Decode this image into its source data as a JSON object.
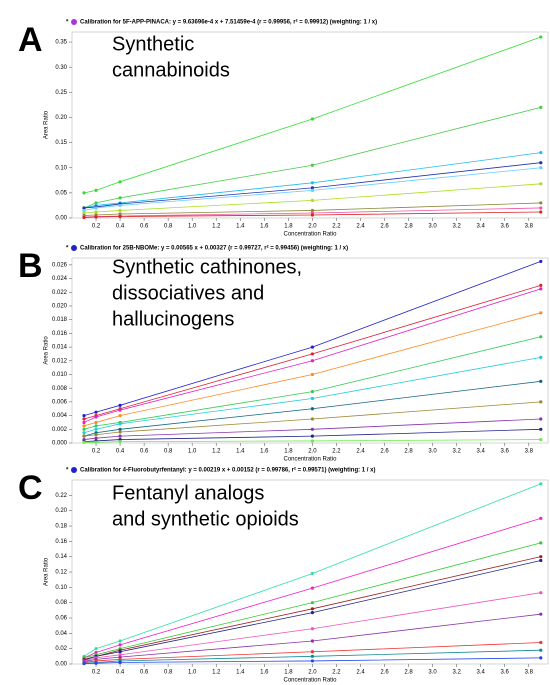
{
  "chart_data": [
    {
      "type": "line",
      "panel_label": "A",
      "heading": [
        "Synthetic",
        "cannabinoids"
      ],
      "caption": "Calibration for 5F-APP-PINACA: y = 9.63696e-4 x + 7.51459e-4 (r = 0.99956, r² = 0.99912) (weighting: 1 / x)",
      "xlabel": "Concentration Ratio",
      "ylabel": "Area Ratio",
      "x": [
        0.1,
        0.2,
        0.4,
        2,
        3.9
      ],
      "xlim": [
        0,
        3.96
      ],
      "ylim": [
        0,
        0.37
      ],
      "xticks": [
        0.2,
        0.4,
        0.6,
        0.8,
        {
          "value": 1,
          "label": "1.0"
        },
        1.2,
        1.4,
        1.6,
        1.8,
        {
          "value": 2,
          "label": "2.0"
        },
        2.2,
        2.4,
        2.6,
        2.8,
        {
          "value": 3,
          "label": "3.0"
        },
        3.2,
        3.4,
        3.6,
        3.8
      ],
      "yticks": [
        {
          "value": 0,
          "label": "0.00"
        },
        0.05,
        {
          "value": 0.1,
          "label": "0.10"
        },
        0.15,
        {
          "value": 0.2,
          "label": "0.20"
        },
        0.25,
        {
          "value": 0.3,
          "label": "0.30"
        },
        0.35
      ],
      "series": [
        {
          "color": "#33dd33",
          "values": [
            0.05,
            0.055,
            0.072,
            0.197,
            0.36
          ]
        },
        {
          "color": "#44cc44",
          "values": [
            0.02,
            0.03,
            0.04,
            0.105,
            0.22
          ]
        },
        {
          "color": "#22bbee",
          "values": [
            0.02,
            0.025,
            0.03,
            0.07,
            0.13
          ]
        },
        {
          "color": "#2233aa",
          "values": [
            0.02,
            0.022,
            0.028,
            0.06,
            0.11
          ]
        },
        {
          "color": "#66ccff",
          "values": [
            0.015,
            0.02,
            0.025,
            0.055,
            0.1
          ]
        },
        {
          "color": "#aadd22",
          "values": [
            0.01,
            0.012,
            0.015,
            0.035,
            0.068
          ]
        },
        {
          "color": "#888833",
          "values": [
            0.005,
            0.006,
            0.008,
            0.015,
            0.03
          ]
        },
        {
          "color": "#ee55aa",
          "values": [
            0.002,
            0.003,
            0.004,
            0.01,
            0.02
          ]
        },
        {
          "color": "#dd2222",
          "values": [
            0.001,
            0.002,
            0.003,
            0.006,
            0.012
          ]
        }
      ]
    },
    {
      "type": "line",
      "panel_label": "B",
      "heading": [
        "Synthetic cathinones,",
        "dissociatives and",
        "hallucinogens"
      ],
      "caption": "Calibration for 25B-NBOMe: y = 0.00565 x + 0.00327 (r = 0.99727, r² = 0.99456) (weighting: 1 / x)",
      "xlabel": "Concentration Ratio",
      "ylabel": "Area Ratio",
      "x": [
        0.1,
        0.2,
        0.4,
        2,
        3.9
      ],
      "xlim": [
        0,
        3.96
      ],
      "ylim": [
        0,
        0.027
      ],
      "xticks": [
        0.2,
        0.4,
        0.6,
        0.8,
        {
          "value": 1,
          "label": "1.0"
        },
        1.2,
        1.4,
        1.6,
        1.8,
        {
          "value": 2,
          "label": "2.0"
        },
        2.2,
        2.4,
        2.6,
        2.8,
        {
          "value": 3,
          "label": "3.0"
        },
        3.2,
        3.4,
        3.6,
        3.8
      ],
      "yticks": [
        {
          "value": 0,
          "label": "0.000"
        },
        0.002,
        0.004,
        0.006,
        0.008,
        {
          "value": 0.01,
          "label": "0.010"
        },
        0.012,
        0.014,
        0.016,
        0.018,
        {
          "value": 0.02,
          "label": "0.020"
        },
        0.022,
        0.024,
        0.026
      ],
      "series": [
        {
          "color": "#2222cc",
          "values": [
            0.004,
            0.0045,
            0.0055,
            0.014,
            0.0265
          ]
        },
        {
          "color": "#dd2233",
          "values": [
            0.0035,
            0.004,
            0.005,
            0.013,
            0.023
          ]
        },
        {
          "color": "#dd22cc",
          "values": [
            0.003,
            0.0038,
            0.0048,
            0.012,
            0.0225
          ]
        },
        {
          "color": "#ff8822",
          "values": [
            0.0025,
            0.003,
            0.004,
            0.01,
            0.019
          ]
        },
        {
          "color": "#33cc55",
          "values": [
            0.002,
            0.0025,
            0.003,
            0.0075,
            0.0155
          ]
        },
        {
          "color": "#22ccdd",
          "values": [
            0.0015,
            0.002,
            0.0028,
            0.0065,
            0.0125
          ]
        },
        {
          "color": "#116688",
          "values": [
            0.001,
            0.0015,
            0.002,
            0.005,
            0.009
          ]
        },
        {
          "color": "#998833",
          "values": [
            0.001,
            0.0012,
            0.0016,
            0.0035,
            0.006
          ]
        },
        {
          "color": "#8833aa",
          "values": [
            0.0005,
            0.0007,
            0.001,
            0.002,
            0.0035
          ]
        },
        {
          "color": "#222288",
          "values": [
            0.0002,
            0.0003,
            0.0005,
            0.001,
            0.002
          ]
        },
        {
          "color": "#66ee44",
          "values": [
            0.0001,
            0.0001,
            0.0002,
            0.0003,
            0.0005
          ]
        }
      ]
    },
    {
      "type": "line",
      "panel_label": "C",
      "heading": [
        "Fentanyl analogs",
        " and synthetic opioids"
      ],
      "caption": "Calibration for 4-Fluorobutyrfentanyl: y = 0.00219 x + 0.00152 (r = 0.99786, r² = 0.99571) (weighting: 1 / x)",
      "xlabel": "Concentration Ratio",
      "ylabel": "Area Ratio",
      "x": [
        0.1,
        0.2,
        0.4,
        2,
        3.9
      ],
      "xlim": [
        0,
        3.96
      ],
      "ylim": [
        0,
        0.24
      ],
      "xticks": [
        0.2,
        0.4,
        0.6,
        0.8,
        {
          "value": 1,
          "label": "1.0"
        },
        1.2,
        1.4,
        1.6,
        1.8,
        {
          "value": 2,
          "label": "2.0"
        },
        2.2,
        2.4,
        2.6,
        2.8,
        {
          "value": 3,
          "label": "3.0"
        },
        3.2,
        3.4,
        3.6,
        3.8
      ],
      "yticks": [
        {
          "value": 0,
          "label": "0.00"
        },
        0.02,
        0.04,
        0.06,
        0.08,
        {
          "value": 0.1,
          "label": "0.10"
        },
        0.12,
        0.14,
        0.16,
        0.18,
        {
          "value": 0.2,
          "label": "0.20"
        },
        0.22
      ],
      "series": [
        {
          "color": "#33ddaa",
          "values": [
            0.01,
            0.02,
            0.03,
            0.118,
            0.235
          ]
        },
        {
          "color": "#ee22cc",
          "values": [
            0.008,
            0.015,
            0.025,
            0.099,
            0.19
          ]
        },
        {
          "color": "#33cc33",
          "values": [
            0.008,
            0.012,
            0.02,
            0.08,
            0.158
          ]
        },
        {
          "color": "#992222",
          "values": [
            0.006,
            0.01,
            0.018,
            0.072,
            0.14
          ]
        },
        {
          "color": "#222288",
          "values": [
            0.005,
            0.01,
            0.016,
            0.067,
            0.135
          ]
        },
        {
          "color": "#ee55bb",
          "values": [
            0.004,
            0.008,
            0.012,
            0.046,
            0.093
          ]
        },
        {
          "color": "#8833aa",
          "values": [
            0.003,
            0.006,
            0.009,
            0.03,
            0.065
          ]
        },
        {
          "color": "#ee3333",
          "values": [
            0.002,
            0.004,
            0.006,
            0.016,
            0.028
          ]
        },
        {
          "color": "#118899",
          "values": [
            0.001,
            0.002,
            0.004,
            0.01,
            0.018
          ]
        },
        {
          "color": "#2244ee",
          "values": [
            0.0005,
            0.001,
            0.002,
            0.004,
            0.008
          ]
        }
      ]
    }
  ]
}
